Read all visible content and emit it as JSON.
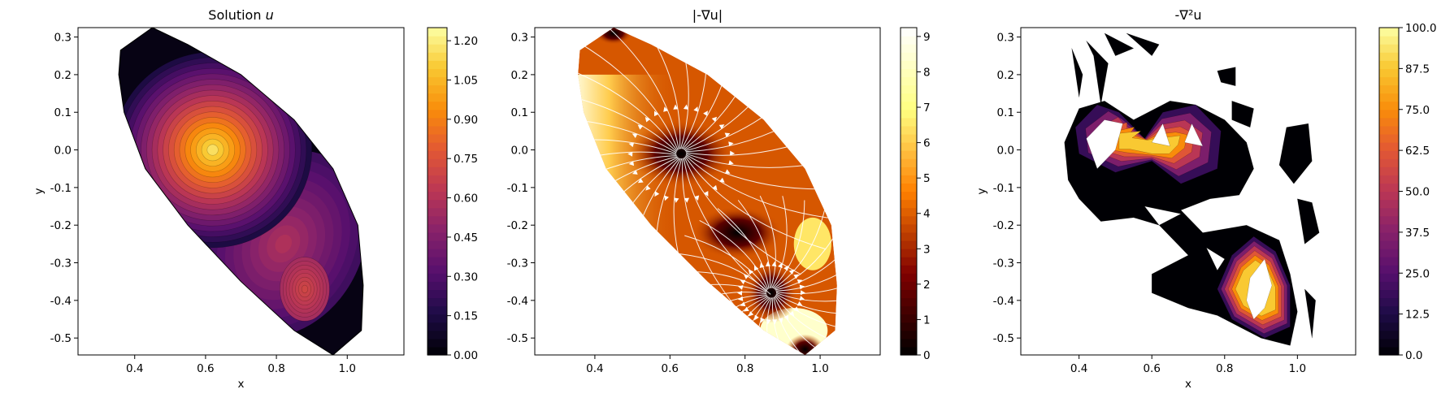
{
  "chart_data": [
    {
      "type": "heatmap",
      "title": "Solution u",
      "title_parts": {
        "prefix": "Solution ",
        "math": "u"
      },
      "xlabel": "x",
      "ylabel": "y",
      "xlim": [
        0.24,
        1.16
      ],
      "ylim": [
        -0.545,
        0.325
      ],
      "xticks": [
        "0.4",
        "0.6",
        "0.8",
        "1.0"
      ],
      "xtick_values": [
        0.4,
        0.6,
        0.8,
        1.0
      ],
      "yticks": [
        "-0.5",
        "-0.4",
        "-0.3",
        "-0.2",
        "-0.1",
        "0.0",
        "0.1",
        "0.2",
        "0.3"
      ],
      "ytick_values": [
        -0.5,
        -0.4,
        -0.3,
        -0.2,
        -0.1,
        0.0,
        0.1,
        0.2,
        0.3
      ],
      "colormap": "inferno",
      "colorbar": {
        "min": 0.0,
        "max": 1.25,
        "ticks": [
          "0.00",
          "0.15",
          "0.30",
          "0.45",
          "0.60",
          "0.75",
          "0.90",
          "1.05",
          "1.20"
        ],
        "tick_values": [
          0.0,
          0.15,
          0.3,
          0.45,
          0.6,
          0.75,
          0.9,
          1.05,
          1.2
        ]
      },
      "features": [
        {
          "kind": "peak",
          "x": 0.62,
          "y": 0.0,
          "value": 1.22
        },
        {
          "kind": "peak",
          "x": 0.88,
          "y": -0.37,
          "value": 0.72
        }
      ],
      "grid": false
    },
    {
      "type": "heatmap",
      "title": "|-∇u|",
      "xlabel": "",
      "ylabel": "",
      "xlim": [
        0.24,
        1.16
      ],
      "ylim": [
        -0.545,
        0.325
      ],
      "xticks": [
        "0.4",
        "0.6",
        "0.8",
        "1.0"
      ],
      "xtick_values": [
        0.4,
        0.6,
        0.8,
        1.0
      ],
      "yticks": [
        "-0.5",
        "-0.4",
        "-0.3",
        "-0.2",
        "-0.1",
        "0.0",
        "0.1",
        "0.2",
        "0.3"
      ],
      "ytick_values": [
        -0.5,
        -0.4,
        -0.3,
        -0.2,
        -0.1,
        0.0,
        0.1,
        0.2,
        0.3
      ],
      "colormap": "afmhot",
      "overlay": "streamlines",
      "streamline_color": "#ffffff",
      "colorbar": {
        "min": 0,
        "max": 9.25,
        "ticks": [
          "0",
          "1",
          "2",
          "3",
          "4",
          "5",
          "6",
          "7",
          "8",
          "9"
        ],
        "tick_values": [
          0,
          1,
          2,
          3,
          4,
          5,
          6,
          7,
          8,
          9
        ]
      },
      "grid": false
    },
    {
      "type": "heatmap",
      "title": "-∇²u",
      "xlabel": "x",
      "ylabel": "y",
      "xlim": [
        0.24,
        1.16
      ],
      "ylim": [
        -0.545,
        0.325
      ],
      "xticks": [
        "0.4",
        "0.6",
        "0.8",
        "1.0"
      ],
      "xtick_values": [
        0.4,
        0.6,
        0.8,
        1.0
      ],
      "yticks": [
        "-0.5",
        "-0.4",
        "-0.3",
        "-0.2",
        "-0.1",
        "0.0",
        "0.1",
        "0.2",
        "0.3"
      ],
      "ytick_values": [
        -0.5,
        -0.4,
        -0.3,
        -0.2,
        -0.1,
        0.0,
        0.1,
        0.2,
        0.3
      ],
      "colormap": "inferno",
      "colorbar": {
        "min": 0.0,
        "max": 100.0,
        "ticks": [
          "0.0",
          "12.5",
          "25.0",
          "37.5",
          "50.0",
          "62.5",
          "75.0",
          "87.5",
          "100.0"
        ],
        "tick_values": [
          0.0,
          12.5,
          25.0,
          37.5,
          50.0,
          62.5,
          75.0,
          87.5,
          100.0
        ]
      },
      "grid": false
    }
  ]
}
